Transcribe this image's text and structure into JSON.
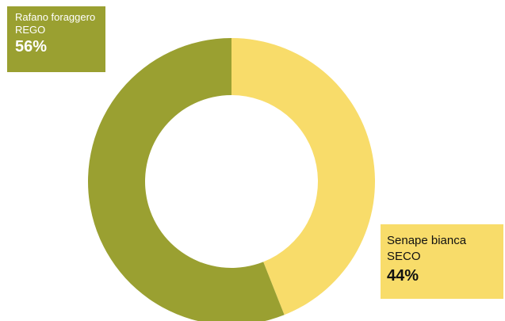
{
  "colors": {
    "rafano": "#9aa031",
    "senape": "#f8dc6a",
    "background": "#ffffff"
  },
  "chart_data": {
    "type": "pie",
    "donut": true,
    "title": "",
    "slices": [
      {
        "label": "Senape bianca SECO",
        "value": 44,
        "color": "#f8dc6a"
      },
      {
        "label": "Rafano foraggero REGO",
        "value": 56,
        "color": "#9aa031"
      }
    ]
  },
  "labels": {
    "rafano": {
      "line1": "Rafano foraggero",
      "line2": "REGO",
      "pct": "56%"
    },
    "senape": {
      "line1": "Senape bianca",
      "line2": "SECO",
      "pct": "44%"
    }
  }
}
